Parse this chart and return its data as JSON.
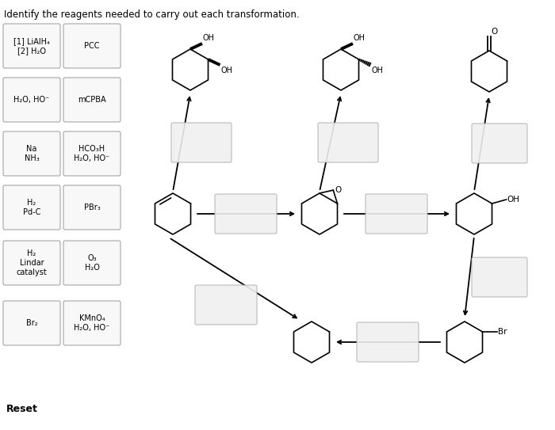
{
  "title": "Identify the reagents needed to carry out each transformation.",
  "title_fontsize": 8.5,
  "background_color": "#ffffff",
  "left_boxes": [
    "[1] LiAlH₄\n[2] H₂O",
    "H₂O, HO⁻",
    "Na\nNH₃",
    "H₂\nPd-C",
    "H₂\nLindar\ncatalyst",
    "Br₂"
  ],
  "right_boxes": [
    "PCC",
    "mCPBA",
    "HCO₃H\nH₂O, HO⁻",
    "PBr₃",
    "O₃\nH₂O",
    "KMnO₄\nH₂O, HO⁻"
  ],
  "reset_label": "Reset"
}
